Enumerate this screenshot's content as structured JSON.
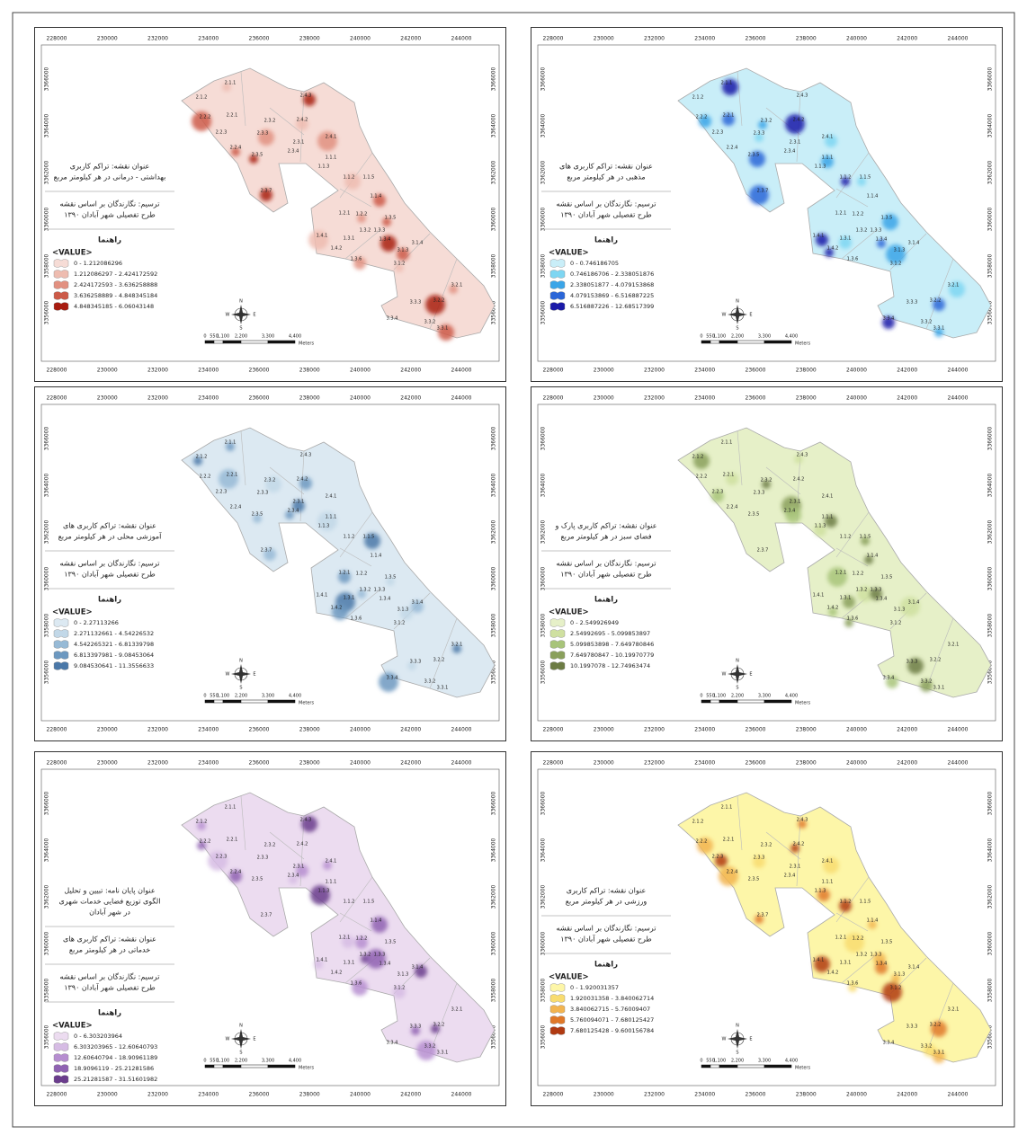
{
  "x_ticks": [
    "228000",
    "230000",
    "232000",
    "234000",
    "236000",
    "238000",
    "240000",
    "242000",
    "244000"
  ],
  "y_ticks": [
    "3356000",
    "3358000",
    "3360000",
    "3362000",
    "3364000",
    "3366000"
  ],
  "scale_labels": [
    "0",
    "550",
    "1,100",
    "2,200",
    "3,300",
    "4,400"
  ],
  "scale_unit": "Meters",
  "compass": [
    "N",
    "E",
    "S",
    "W"
  ],
  "districts": [
    "2.1.1",
    "2.1.2",
    "2.2.2",
    "2.2.1",
    "2.2.3",
    "2.3.3",
    "2.3.2",
    "2.4.3",
    "2.4.2",
    "2.3.1",
    "2.2.4",
    "2.3.5",
    "2.3.4",
    "2.4.1",
    "1.1.1",
    "1.1.3",
    "1.1.2",
    "1.1.5",
    "1.1.4",
    "2.3.7",
    "1.2.1",
    "1.2.2",
    "1.3.5",
    "1.3.2",
    "1.4.1",
    "1.3.1",
    "1.3.3",
    "1.3.4",
    "1.4.2",
    "1.3.6",
    "3.1.3",
    "3.1.4",
    "3.1.2",
    "3.2.1",
    "3.3.3",
    "3.2.2",
    "3.3.4",
    "3.3.2",
    "3.3.1"
  ],
  "maps": [
    {
      "title_blocks": [
        [
          "عنوان نقشه: تراکم کاربری",
          "بهداشتی - درمانی در هر کیلومتر مربع"
        ]
      ],
      "credit": [
        "ترسیم: نگارندگان بر اساس نقشه",
        "طرح تفصیلی شهر آبادان ۱۳۹۰"
      ],
      "legend_title": "راهنما",
      "legend_heading": "<VALUE>",
      "classes": [
        "0 - 1.212086296",
        "1.212086297 - 2.424172592",
        "2.424172593 - 3.636258888",
        "3.636258889 - 4.848345184",
        "4.848345185 - 6.06043148"
      ],
      "colors": [
        "#f6dcd6",
        "#eebcb0",
        "#e29080",
        "#cc5a48",
        "#a81c10"
      ]
    },
    {
      "title_blocks": [
        [
          "عنوان نقشه: تراکم کاربری های",
          "مذهبی در هر کیلومتر مربع"
        ]
      ],
      "credit": [
        "ترسیم: نگارندگان بر اساس نقشه",
        "طرح تفصیلی شهر آبادان ۱۳۹۰"
      ],
      "legend_title": "راهنما",
      "legend_heading": "<VALUE>",
      "classes": [
        "0 - 0.746186705",
        "0.746186706 - 2.338051876",
        "2.338051877 - 4.079153868",
        "4.079153869 - 6.516887225",
        "6.516887226 - 12.68517399"
      ],
      "colors": [
        "#c9eef8",
        "#7ed6f2",
        "#3aa5e8",
        "#2a66d8",
        "#1a1aa8"
      ]
    },
    {
      "title_blocks": [
        [
          "عنوان نقشه: تراکم کاربری های",
          "آموزشی محلی در هر کیلومتر مربع"
        ]
      ],
      "credit": [
        "ترسیم: نگارندگان بر اساس نقشه",
        "طرح تفصیلی شهر آبادان ۱۳۹۰"
      ],
      "legend_title": "راهنما",
      "legend_heading": "<VALUE>",
      "classes": [
        "0 - 2.27113266",
        "2.271132661 - 4.54226532",
        "4.542265321 - 6.81339798",
        "6.813397981 - 9.08453064",
        "9.084530641 - 11.3556633"
      ],
      "colors": [
        "#dce9f2",
        "#c2d8e8",
        "#97bad6",
        "#6c98c0",
        "#4a78a8"
      ]
    },
    {
      "title_blocks": [
        [
          "عنوان نقشه: تراکم کاربری پارک و",
          "فضای سبز در هر کیلومتر مربع"
        ]
      ],
      "credit": [
        "ترسیم: نگارندگان بر اساس نقشه",
        "طرح تفصیلی شهر آبادان ۱۳۹۰"
      ],
      "legend_title": "راهنما",
      "legend_heading": "<VALUE>",
      "classes": [
        "0 - 2.549926949",
        "2.54992695 - 5.099853897",
        "5.099853898 - 7.649780846",
        "7.649780847 - 10.19970779",
        "10.1997078 - 12.74963474"
      ],
      "colors": [
        "#e6f0c8",
        "#cfe0a0",
        "#a8c47a",
        "#8aa05c",
        "#6c7c44"
      ]
    },
    {
      "title_blocks": [
        [
          "عنوان پایان نامه: تبیین و تحلیل",
          "الگوی توزیع فضایی خدمات شهری",
          "در شهر آبادان"
        ],
        [
          "عنوان نقشه: تراکم کاربری های",
          "خدماتی در هر کیلومتر مربع"
        ]
      ],
      "credit": [
        "ترسیم: نگارندگان بر اساس نقشه",
        "طرح تفصیلی شهر آبادان ۱۳۹۰"
      ],
      "legend_title": "راهنما",
      "legend_heading": "<VALUE>",
      "classes": [
        "0 - 6.303203964",
        "6.303203965 - 12.60640793",
        "12.60640794 - 18.90961189",
        "18.9096119 - 25.21281586",
        "25.21281587 - 31.51601982"
      ],
      "colors": [
        "#ecdcf0",
        "#d6bce4",
        "#b68ed0",
        "#8f62b2",
        "#6a3c8c"
      ]
    },
    {
      "title_blocks": [
        [
          "عنوان نقشه: تراکم کاربری",
          "ورزشی در هر کیلومتر مربع"
        ]
      ],
      "credit": [
        "ترسیم: نگارندگان بر اساس نقشه",
        "طرح تفصیلی شهر آبادان ۱۳۹۰"
      ],
      "legend_title": "راهنما",
      "legend_heading": "<VALUE>",
      "classes": [
        "0 - 1.920031357",
        "1.920031358 - 3.840062714",
        "3.840062715 - 5.76009407",
        "5.760094071 - 7.680125427",
        "7.680125428 - 9.600156784"
      ],
      "colors": [
        "#fdf6a8",
        "#f8dc70",
        "#f2b450",
        "#e07828",
        "#b03a12"
      ]
    }
  ]
}
